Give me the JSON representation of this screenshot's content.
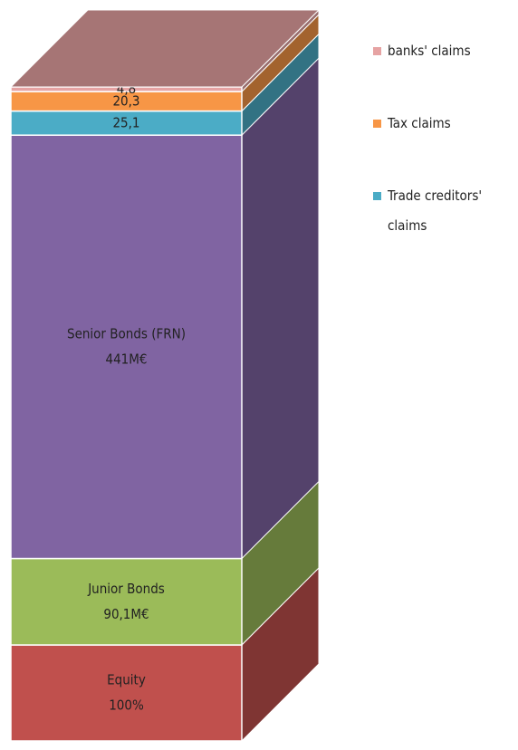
{
  "chart_data": {
    "type": "stacked-3d-column",
    "series": [
      {
        "name": "Equity",
        "color": "#c0504d",
        "values": [
          100
        ],
        "value_labels": [
          "100%"
        ],
        "in_legend": false
      },
      {
        "name": "Junior Bonds",
        "color": "#9bbb59",
        "values": [
          90.1
        ],
        "value_labels": [
          "90,1M€"
        ],
        "in_legend": false
      },
      {
        "name": "Senior Bonds (FRN)",
        "color": "#8064a2",
        "values": [
          441
        ],
        "value_labels": [
          "441M€"
        ],
        "in_legend": false
      },
      {
        "name": "Trade creditors' claims",
        "color": "#4bacc6",
        "values": [
          25.1
        ],
        "value_labels": [
          "25,1"
        ],
        "in_legend": true
      },
      {
        "name": "Tax claims",
        "color": "#f79646",
        "values": [
          20.3
        ],
        "value_labels": [
          "20,3"
        ],
        "in_legend": true
      },
      {
        "name": "banks' claims",
        "color": "#e6a3a3",
        "values": [
          4.8
        ],
        "value_labels": [
          "4,8"
        ],
        "in_legend": true
      }
    ]
  }
}
